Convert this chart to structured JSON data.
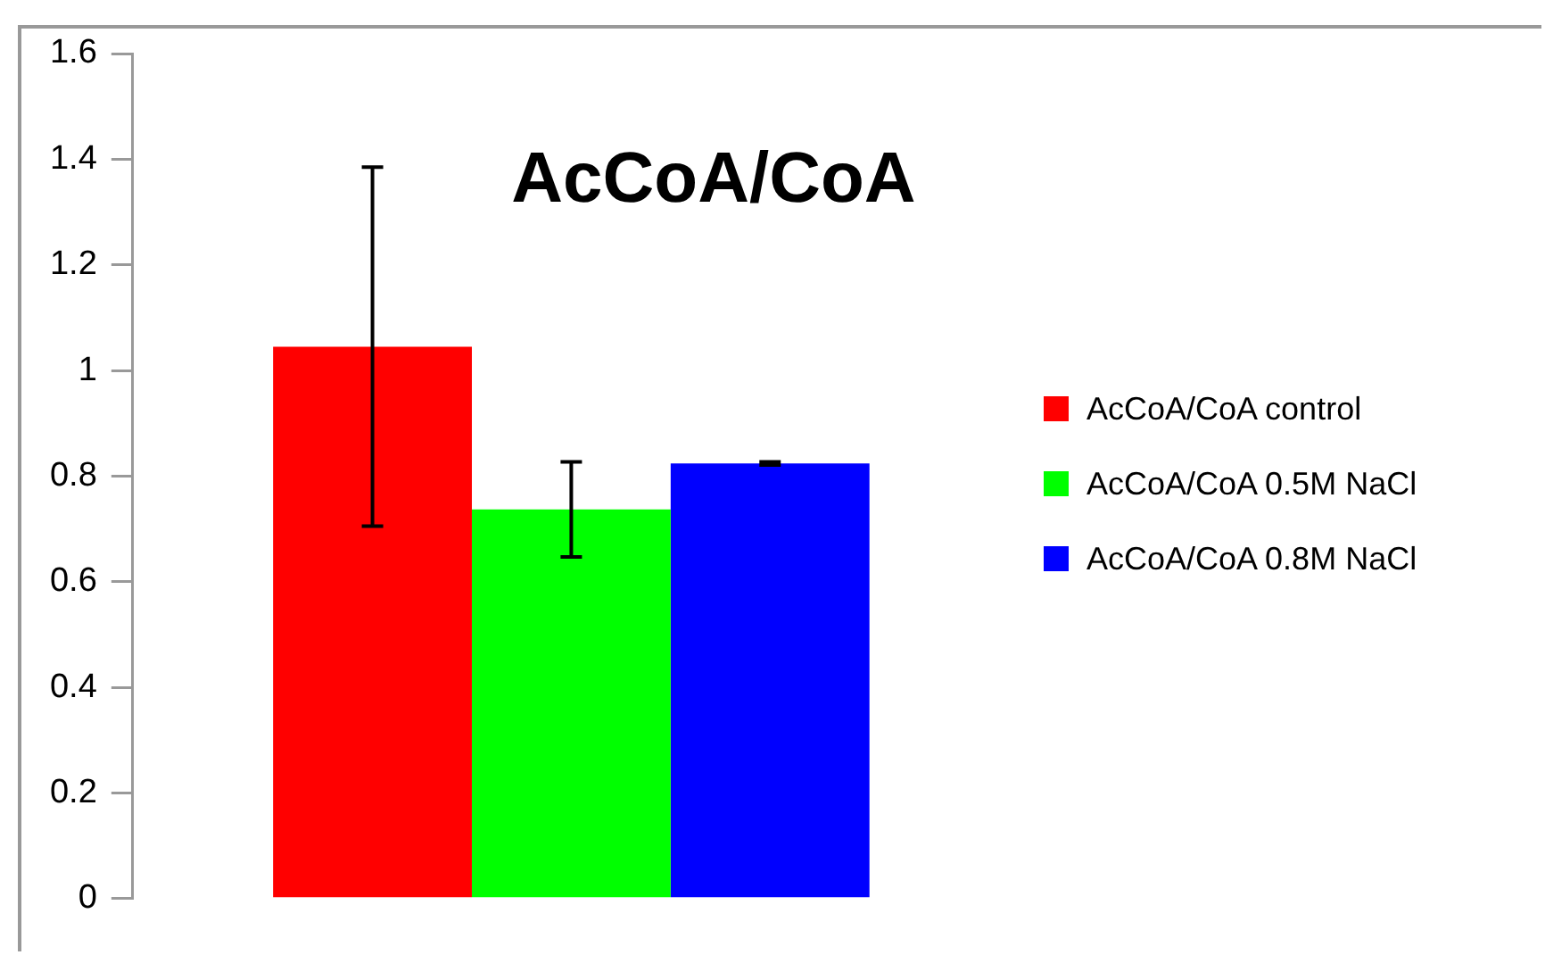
{
  "chart_data": {
    "type": "bar",
    "title": "AcCoA/CoA",
    "categories": [
      null
    ],
    "series": [
      {
        "name": "AcCoA/CoA control",
        "color": "#ff0000",
        "values": [
          1.045
        ],
        "errors": [
          0.34
        ]
      },
      {
        "name": "AcCoA/CoA 0.5M NaCl",
        "color": "#00ff00",
        "values": [
          0.737
        ],
        "errors": [
          0.09
        ]
      },
      {
        "name": "AcCoA/CoA 0.8M NaCl",
        "color": "#0000ff",
        "values": [
          0.824
        ],
        "errors": [
          0.003
        ]
      }
    ],
    "ylim": [
      0,
      1.6
    ],
    "yticks": [
      0,
      0.2,
      0.4,
      0.6,
      0.8,
      1,
      1.2,
      1.4,
      1.6
    ],
    "grid": false,
    "legend": "right"
  }
}
